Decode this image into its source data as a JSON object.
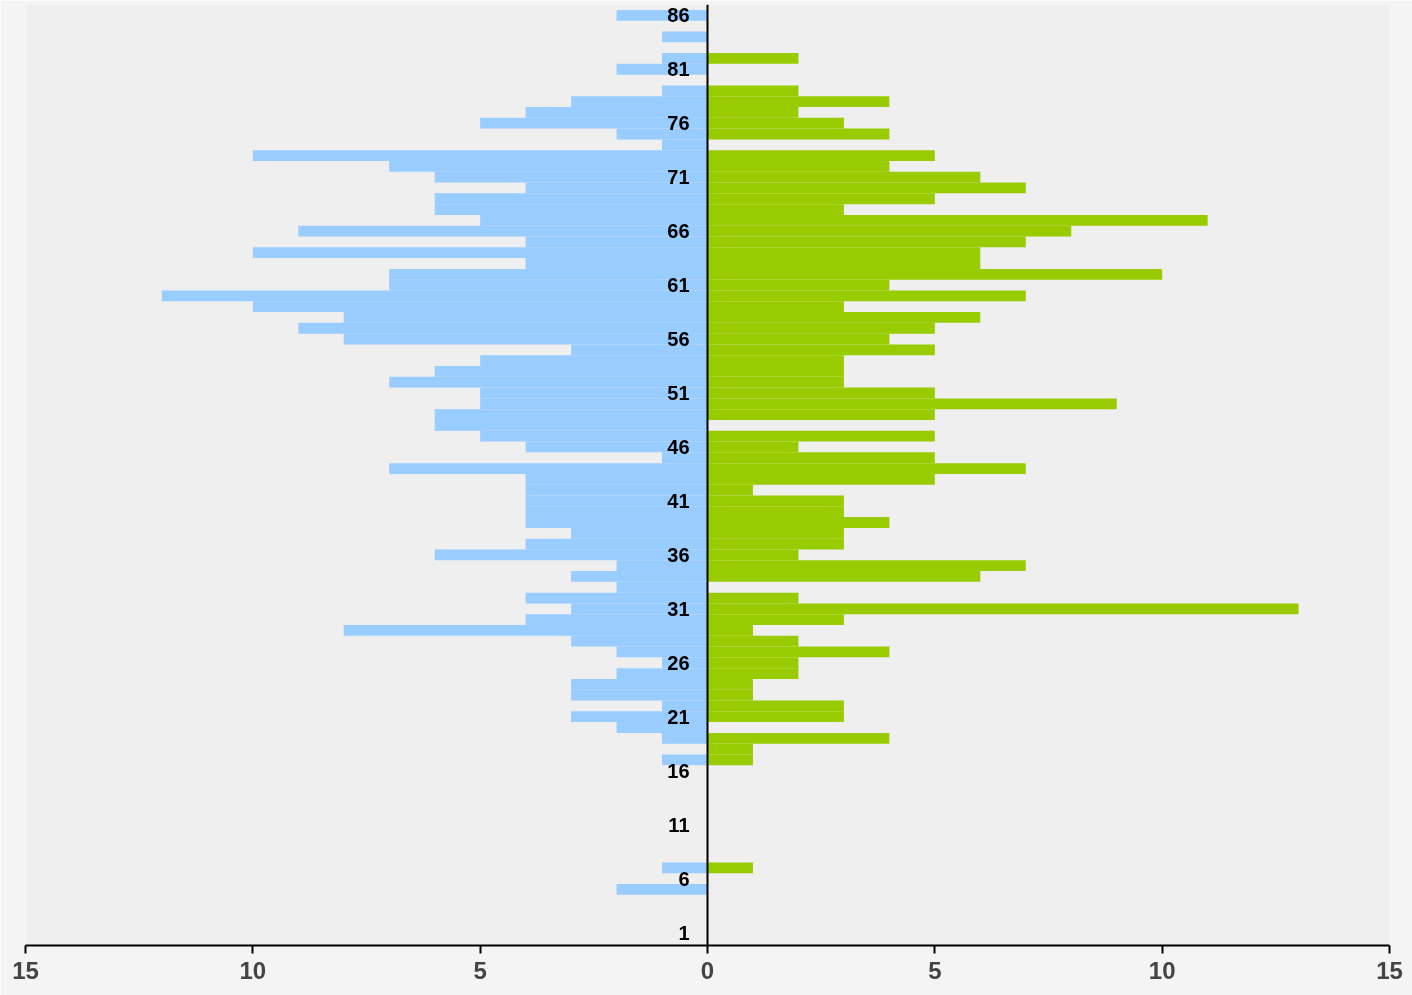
{
  "chart_data": {
    "type": "bar",
    "orientation": "horizontal",
    "stacked": true,
    "categories": [
      "86",
      null,
      null,
      null,
      null,
      "81",
      null,
      null,
      null,
      null,
      "76",
      null,
      null,
      null,
      null,
      "71",
      null,
      null,
      null,
      null,
      "66",
      null,
      null,
      null,
      null,
      "61",
      null,
      null,
      null,
      null,
      "56",
      null,
      null,
      null,
      null,
      "51",
      null,
      null,
      null,
      null,
      "46",
      null,
      null,
      null,
      null,
      "41",
      null,
      null,
      null,
      null,
      "36",
      null,
      null,
      null,
      null,
      "31",
      null,
      null,
      null,
      null,
      "26",
      null,
      null,
      null,
      null,
      "21",
      null,
      null,
      null,
      null,
      "16",
      null,
      null,
      null,
      null,
      "11",
      null,
      null,
      null,
      null,
      "6",
      null,
      null,
      null,
      null,
      "1"
    ],
    "series": [
      {
        "color": "#99ccff",
        "values": [
          -2,
          0,
          -1,
          0,
          -1,
          -2,
          0,
          -1,
          -3,
          -4,
          -5,
          -2,
          -1,
          -10,
          -7,
          -6,
          -4,
          -6,
          -6,
          -5,
          -9,
          -4,
          -10,
          -4,
          -7,
          -7,
          -12,
          -10,
          -8,
          -9,
          -8,
          -3,
          -5,
          -6,
          -7,
          -5,
          -5,
          -6,
          -6,
          -5,
          -4,
          -1,
          -7,
          -4,
          -4,
          -4,
          -4,
          -4,
          -3,
          -4,
          -6,
          -2,
          -3,
          -2,
          -4,
          -3,
          -4,
          -8,
          -3,
          -2,
          -1,
          -2,
          -3,
          -3,
          -1,
          -3,
          -2,
          -1,
          0,
          -1,
          0,
          0,
          0,
          0,
          0,
          0,
          0,
          0,
          0,
          -1,
          0,
          -2,
          0,
          0,
          0,
          0
        ]
      },
      {
        "color": "#99cc00",
        "values": [
          0,
          0,
          0,
          0,
          2,
          0,
          0,
          2,
          4,
          2,
          3,
          4,
          0,
          5,
          4,
          6,
          7,
          5,
          3,
          11,
          8,
          7,
          6,
          6,
          10,
          4,
          7,
          3,
          6,
          5,
          4,
          5,
          3,
          3,
          3,
          5,
          9,
          5,
          0,
          5,
          2,
          5,
          7,
          5,
          1,
          3,
          3,
          4,
          3,
          3,
          2,
          7,
          6,
          0,
          2,
          13,
          3,
          1,
          2,
          4,
          2,
          2,
          1,
          1,
          3,
          3,
          0,
          4,
          1,
          1,
          0,
          0,
          0,
          0,
          0,
          0,
          0,
          0,
          0,
          1,
          0,
          0,
          0,
          0,
          0,
          0
        ]
      }
    ],
    "xlim": [
      -15,
      15
    ],
    "xticks": [
      {
        "value": -15,
        "label": "15"
      },
      {
        "value": -10,
        "label": "10"
      },
      {
        "value": -5,
        "label": "5"
      },
      0,
      5,
      10,
      15
    ]
  }
}
